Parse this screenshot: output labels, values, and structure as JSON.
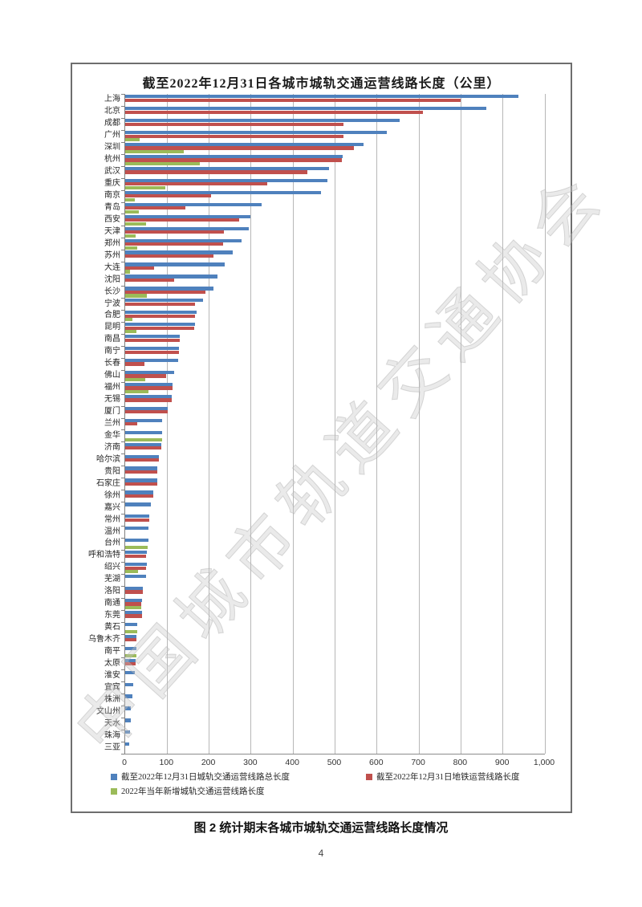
{
  "page": {
    "number": "4"
  },
  "figure_caption": "图 2 统计期末各城市城轨交通运营线路长度情况",
  "watermark": "中国城市轨道交通协会",
  "colors": {
    "total": "#4F81BD",
    "metro": "#C0504D",
    "new": "#9BBB59",
    "gridline": "#b7b7b7",
    "border": "#6e6e6e"
  },
  "chart_data": {
    "type": "bar",
    "orientation": "horizontal",
    "title": "截至2022年12月31日各城市城轨交通运营线路长度（公里）",
    "xlabel": "",
    "ylabel": "",
    "xlim": [
      0,
      1000
    ],
    "grid": true,
    "legend_position": "bottom-inside",
    "xticks": [
      0,
      100,
      200,
      300,
      400,
      500,
      600,
      700,
      800,
      900,
      1000
    ],
    "xtick_labels": [
      "0",
      "100",
      "200",
      "300",
      "400",
      "500",
      "600",
      "700",
      "800",
      "900",
      "1,000"
    ],
    "categories": [
      "上海",
      "北京",
      "成都",
      "广州",
      "深圳",
      "杭州",
      "武汉",
      "重庆",
      "南京",
      "青岛",
      "西安",
      "天津",
      "郑州",
      "苏州",
      "大连",
      "沈阳",
      "长沙",
      "宁波",
      "合肥",
      "昆明",
      "南昌",
      "南宁",
      "长春",
      "佛山",
      "福州",
      "无锡",
      "厦门",
      "兰州",
      "金华",
      "济南",
      "哈尔滨",
      "贵阳",
      "石家庄",
      "徐州",
      "嘉兴",
      "常州",
      "温州",
      "台州",
      "呼和浩特",
      "绍兴",
      "芜湖",
      "洛阳",
      "南通",
      "东莞",
      "黄石",
      "乌鲁木齐",
      "南平",
      "太原",
      "淮安",
      "宜宾",
      "株洲",
      "文山州",
      "天水",
      "珠海",
      "三亚"
    ],
    "series": [
      {
        "name": "截至2022年12月31日城轨交通运营线路总长度",
        "color": "#4F81BD",
        "values": [
          937,
          860,
          653,
          623,
          567,
          519,
          485,
          481,
          467,
          326,
          299,
          295,
          277,
          256,
          238,
          219,
          211,
          185,
          170,
          166,
          130,
          129,
          126,
          117,
          113,
          111,
          102,
          88,
          88,
          86,
          81,
          76,
          76,
          67,
          62,
          58,
          56,
          55,
          52,
          51,
          49,
          43,
          40,
          40,
          28,
          27,
          27,
          24,
          22,
          20,
          17,
          14,
          13,
          11,
          9
        ]
      },
      {
        "name": "截至2022年12月31日地铁运营线路长度",
        "color": "#C0504D",
        "values": [
          800,
          710,
          520,
          521,
          545,
          516,
          434,
          339,
          205,
          143,
          272,
          236,
          234,
          210,
          68,
          117,
          192,
          166,
          167,
          165,
          130,
          129,
          45,
          97,
          113,
          111,
          102,
          29,
          0,
          86,
          81,
          76,
          76,
          67,
          0,
          57,
          0,
          0,
          50,
          49,
          0,
          43,
          38,
          40,
          0,
          27,
          0,
          24,
          0,
          0,
          0,
          0,
          0,
          0,
          0
        ]
      },
      {
        "name": "2022年当年新增城轨交通运营线路长度",
        "color": "#9BBB59",
        "values": [
          0,
          0,
          0,
          35,
          139,
          177,
          0,
          95,
          23,
          33,
          49,
          24,
          28,
          0,
          11,
          0,
          51,
          0,
          17,
          27,
          0,
          0,
          0,
          47,
          55,
          0,
          0,
          0,
          87,
          0,
          0,
          0,
          0,
          0,
          0,
          0,
          0,
          53,
          0,
          30,
          0,
          0,
          38,
          0,
          28,
          0,
          27,
          0,
          0,
          0,
          0,
          0,
          0,
          0,
          0
        ]
      }
    ]
  }
}
